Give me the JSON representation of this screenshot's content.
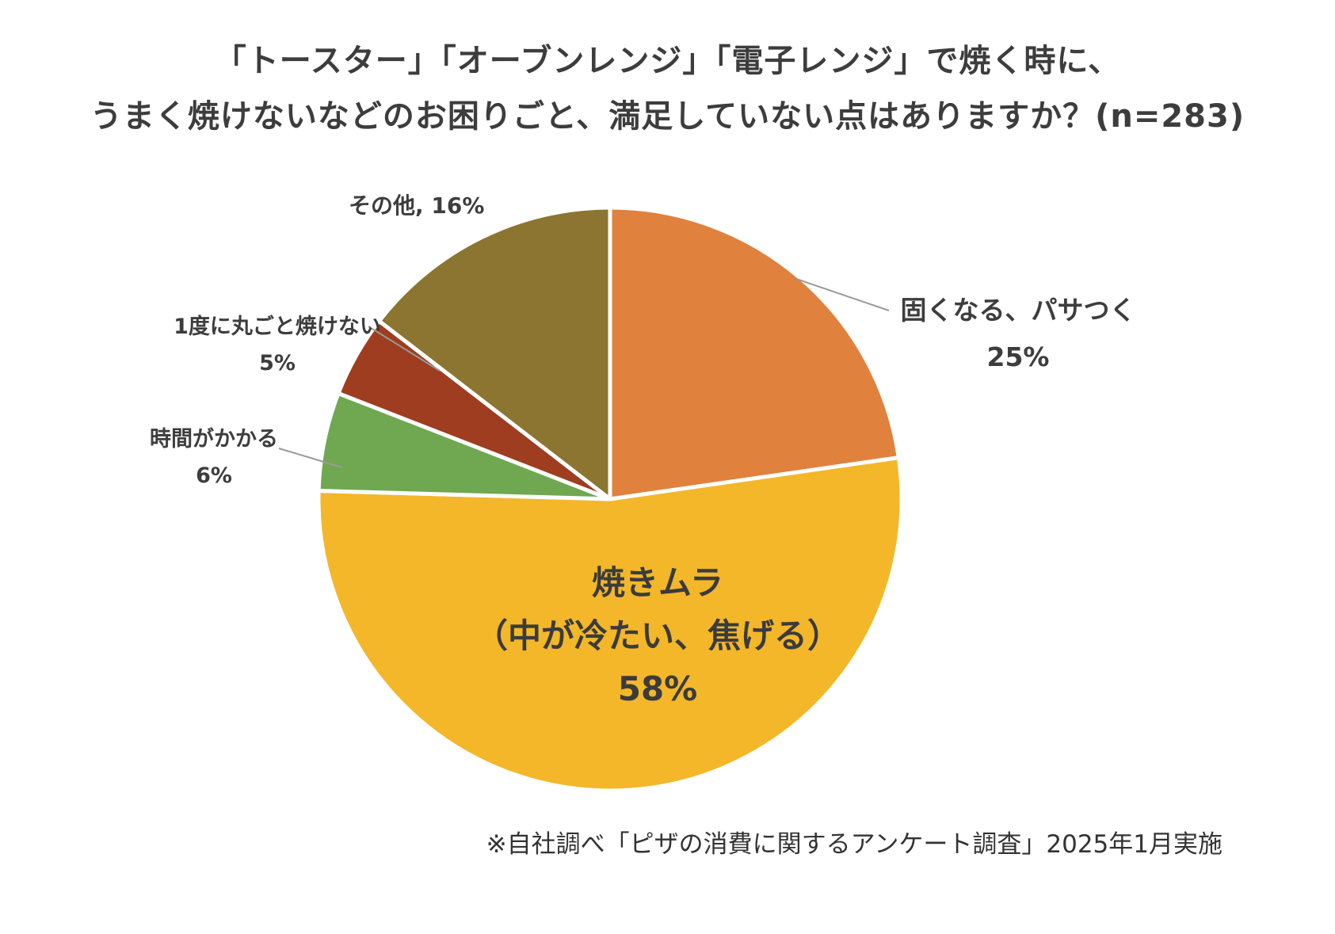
{
  "title": {
    "line1": "「トースター」「オーブンレンジ」「電子レンジ」で焼く時に、",
    "line2": "うまく焼けないなどのお困りごと、満足していない点はありますか？(n=283)"
  },
  "chart_data": {
    "type": "pie",
    "title": "「トースター」「オーブンレンジ」「電子レンジ」で焼く時に、うまく焼けないなどのお困りごと、満足していない点はありますか？",
    "sample_size_label": "(n=283)",
    "start_angle_deg": 0,
    "direction": "clockwise",
    "legend_position": "callout-labels",
    "segments": [
      {
        "label": "固くなる、パサつく",
        "value": 25,
        "value_label": "25%",
        "color": "#E0813E"
      },
      {
        "label": "焼きムラ（中が冷たい、焦げる）",
        "value": 58,
        "value_label": "58%",
        "color": "#F3B729"
      },
      {
        "label": "時間がかかる",
        "value": 6,
        "value_label": "6%",
        "color": "#6FA850"
      },
      {
        "label": "1度に丸ごと焼けない",
        "value": 5,
        "value_label": "5%",
        "color": "#9E3D1F"
      },
      {
        "label": "その他",
        "value": 16,
        "value_label": "16%",
        "color": "#8C7530"
      }
    ]
  },
  "callouts": {
    "other": "その他, 16%",
    "center1": "焼きムラ",
    "center2": "（中が冷たい、焦げる）",
    "center3": "58%"
  },
  "footnote": "※自社調べ「ピザの消費に関するアンケート調査」2025年1月実施"
}
